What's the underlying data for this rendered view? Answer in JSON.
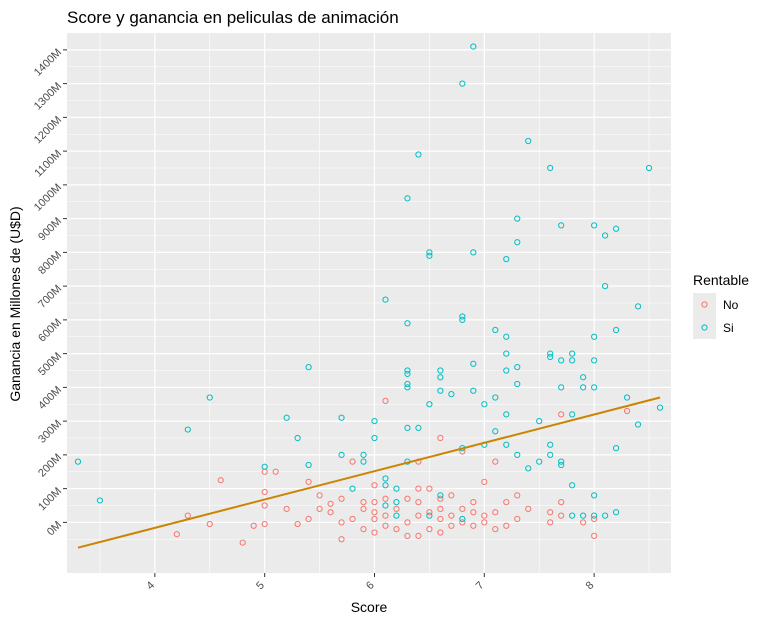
{
  "chart_data": {
    "type": "scatter",
    "title": "Score y ganancia en peliculas de animación",
    "xlabel": "Score",
    "ylabel": "Ganancia en Millones de (U$D)",
    "xlim": [
      3.2,
      8.7
    ],
    "ylim": [
      -150,
      1450
    ],
    "x_ticks": [
      4,
      5,
      6,
      7,
      8
    ],
    "x_tick_labels": [
      "4",
      "5",
      "6",
      "7",
      "8"
    ],
    "y_ticks": [
      0,
      100,
      200,
      300,
      400,
      500,
      600,
      700,
      800,
      900,
      1000,
      1100,
      1200,
      1300,
      1400
    ],
    "y_tick_labels": [
      "0M",
      "100M",
      "200M",
      "300M",
      "400M",
      "500M",
      "600M",
      "700M",
      "800M",
      "900M",
      "1000M",
      "1100M",
      "1200M",
      "1300M",
      "1400M"
    ],
    "grid": true,
    "colors": {
      "No": "#F8766D",
      "Si": "#00BFC4",
      "trend": "#CC8400",
      "panel": "#EBEBEB",
      "grid": "#FFFFFF"
    },
    "legend": {
      "title": "Rentable",
      "placement": "right",
      "entries": [
        "No",
        "Si"
      ]
    },
    "trend_line": {
      "x": [
        3.3,
        8.6
      ],
      "y": [
        -75,
        370
      ]
    },
    "series": [
      {
        "name": "No",
        "points": [
          [
            4.2,
            -35
          ],
          [
            4.3,
            20
          ],
          [
            4.5,
            -5
          ],
          [
            4.6,
            125
          ],
          [
            4.8,
            -60
          ],
          [
            4.9,
            -10
          ],
          [
            5.0,
            -5
          ],
          [
            5.0,
            50
          ],
          [
            5.0,
            90
          ],
          [
            5.0,
            150
          ],
          [
            5.1,
            150
          ],
          [
            5.2,
            40
          ],
          [
            5.3,
            -5
          ],
          [
            5.4,
            10
          ],
          [
            5.4,
            120
          ],
          [
            5.5,
            40
          ],
          [
            5.5,
            80
          ],
          [
            5.6,
            55
          ],
          [
            5.6,
            30
          ],
          [
            5.7,
            -50
          ],
          [
            5.7,
            0
          ],
          [
            5.7,
            70
          ],
          [
            5.8,
            10
          ],
          [
            5.8,
            180
          ],
          [
            5.9,
            40
          ],
          [
            5.9,
            -20
          ],
          [
            5.9,
            60
          ],
          [
            6.0,
            -30
          ],
          [
            6.0,
            10
          ],
          [
            6.0,
            30
          ],
          [
            6.0,
            60
          ],
          [
            6.0,
            110
          ],
          [
            6.1,
            -10
          ],
          [
            6.1,
            20
          ],
          [
            6.1,
            70
          ],
          [
            6.1,
            360
          ],
          [
            6.2,
            40
          ],
          [
            6.2,
            -20
          ],
          [
            6.3,
            -40
          ],
          [
            6.3,
            0
          ],
          [
            6.3,
            70
          ],
          [
            6.4,
            -40
          ],
          [
            6.4,
            20
          ],
          [
            6.4,
            60
          ],
          [
            6.4,
            100
          ],
          [
            6.4,
            180
          ],
          [
            6.5,
            -20
          ],
          [
            6.5,
            30
          ],
          [
            6.5,
            100
          ],
          [
            6.6,
            -30
          ],
          [
            6.6,
            10
          ],
          [
            6.6,
            40
          ],
          [
            6.6,
            70
          ],
          [
            6.6,
            250
          ],
          [
            6.7,
            -10
          ],
          [
            6.7,
            20
          ],
          [
            6.7,
            80
          ],
          [
            6.8,
            0
          ],
          [
            6.8,
            40
          ],
          [
            6.8,
            210
          ],
          [
            6.9,
            -10
          ],
          [
            6.9,
            30
          ],
          [
            6.9,
            60
          ],
          [
            7.0,
            0
          ],
          [
            7.0,
            20
          ],
          [
            7.0,
            120
          ],
          [
            7.1,
            -20
          ],
          [
            7.1,
            30
          ],
          [
            7.1,
            180
          ],
          [
            7.2,
            -10
          ],
          [
            7.2,
            60
          ],
          [
            7.3,
            10
          ],
          [
            7.3,
            80
          ],
          [
            7.4,
            40
          ],
          [
            7.6,
            0
          ],
          [
            7.6,
            30
          ],
          [
            7.7,
            20
          ],
          [
            7.7,
            60
          ],
          [
            7.7,
            320
          ],
          [
            7.9,
            0
          ],
          [
            8.0,
            -40
          ],
          [
            8.0,
            10
          ],
          [
            8.3,
            330
          ]
        ]
      },
      {
        "name": "Si",
        "points": [
          [
            3.3,
            180
          ],
          [
            3.5,
            65
          ],
          [
            4.3,
            275
          ],
          [
            4.5,
            370
          ],
          [
            5.0,
            165
          ],
          [
            5.2,
            310
          ],
          [
            5.3,
            250
          ],
          [
            5.4,
            460
          ],
          [
            5.4,
            170
          ],
          [
            5.7,
            200
          ],
          [
            5.7,
            310
          ],
          [
            5.8,
            100
          ],
          [
            5.9,
            200
          ],
          [
            5.9,
            180
          ],
          [
            6.0,
            250
          ],
          [
            6.0,
            300
          ],
          [
            6.1,
            50
          ],
          [
            6.1,
            110
          ],
          [
            6.1,
            130
          ],
          [
            6.1,
            660
          ],
          [
            6.2,
            60
          ],
          [
            6.2,
            100
          ],
          [
            6.2,
            20
          ],
          [
            6.3,
            400
          ],
          [
            6.3,
            410
          ],
          [
            6.3,
            450
          ],
          [
            6.3,
            440
          ],
          [
            6.3,
            590
          ],
          [
            6.3,
            960
          ],
          [
            6.3,
            180
          ],
          [
            6.3,
            280
          ],
          [
            6.4,
            1090
          ],
          [
            6.4,
            280
          ],
          [
            6.5,
            350
          ],
          [
            6.5,
            800
          ],
          [
            6.5,
            790
          ],
          [
            6.5,
            20
          ],
          [
            6.6,
            430
          ],
          [
            6.6,
            450
          ],
          [
            6.6,
            390
          ],
          [
            6.6,
            80
          ],
          [
            6.7,
            380
          ],
          [
            6.8,
            1300
          ],
          [
            6.8,
            610
          ],
          [
            6.8,
            600
          ],
          [
            6.8,
            10
          ],
          [
            6.8,
            220
          ],
          [
            6.9,
            1410
          ],
          [
            6.9,
            800
          ],
          [
            6.9,
            470
          ],
          [
            6.9,
            390
          ],
          [
            7.0,
            230
          ],
          [
            7.0,
            350
          ],
          [
            7.1,
            370
          ],
          [
            7.1,
            570
          ],
          [
            7.1,
            270
          ],
          [
            7.2,
            450
          ],
          [
            7.2,
            500
          ],
          [
            7.2,
            550
          ],
          [
            7.2,
            780
          ],
          [
            7.2,
            320
          ],
          [
            7.2,
            230
          ],
          [
            7.3,
            900
          ],
          [
            7.3,
            830
          ],
          [
            7.3,
            460
          ],
          [
            7.3,
            410
          ],
          [
            7.3,
            200
          ],
          [
            7.4,
            1130
          ],
          [
            7.4,
            160
          ],
          [
            7.5,
            180
          ],
          [
            7.5,
            300
          ],
          [
            7.6,
            1050
          ],
          [
            7.6,
            500
          ],
          [
            7.6,
            490
          ],
          [
            7.6,
            230
          ],
          [
            7.6,
            200
          ],
          [
            7.7,
            880
          ],
          [
            7.7,
            480
          ],
          [
            7.7,
            400
          ],
          [
            7.7,
            180
          ],
          [
            7.7,
            170
          ],
          [
            7.8,
            500
          ],
          [
            7.8,
            480
          ],
          [
            7.8,
            320
          ],
          [
            7.8,
            110
          ],
          [
            7.8,
            20
          ],
          [
            7.9,
            430
          ],
          [
            7.9,
            400
          ],
          [
            7.9,
            20
          ],
          [
            8.0,
            880
          ],
          [
            8.0,
            550
          ],
          [
            8.0,
            480
          ],
          [
            8.0,
            400
          ],
          [
            8.0,
            80
          ],
          [
            8.0,
            20
          ],
          [
            8.1,
            850
          ],
          [
            8.1,
            700
          ],
          [
            8.1,
            20
          ],
          [
            8.2,
            870
          ],
          [
            8.2,
            570
          ],
          [
            8.2,
            220
          ],
          [
            8.2,
            30
          ],
          [
            8.3,
            370
          ],
          [
            8.4,
            640
          ],
          [
            8.4,
            290
          ],
          [
            8.5,
            1050
          ],
          [
            8.6,
            340
          ]
        ]
      }
    ]
  }
}
